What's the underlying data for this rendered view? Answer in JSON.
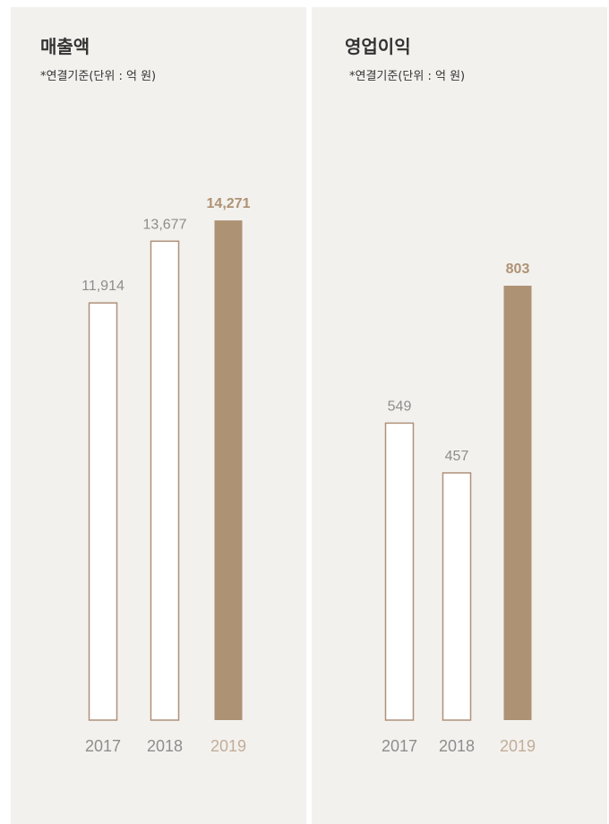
{
  "colors": {
    "panel_bg": "#f3f1ee",
    "accent": "#ae9274",
    "outline": "#b0917a",
    "muted_text": "#8d8d8d",
    "title_text": "#333333"
  },
  "chart_data": [
    {
      "type": "bar",
      "title": "매출액",
      "subtitle": "*연결기준(단위 : 억 원)",
      "categories": [
        "2017",
        "2018",
        "2019"
      ],
      "values": [
        11914,
        13677,
        14271
      ],
      "value_labels": [
        "11,914",
        "13,677",
        "14,271"
      ],
      "highlight_index": 2,
      "ylim": [
        0,
        16000
      ],
      "grid": false
    },
    {
      "type": "bar",
      "title": "영업이익",
      "subtitle": "*연결기준(단위 : 억 원)",
      "categories": [
        "2017",
        "2018",
        "2019"
      ],
      "values": [
        549,
        457,
        803
      ],
      "value_labels": [
        "549",
        "457",
        "803"
      ],
      "highlight_index": 2,
      "ylim": [
        0,
        1000
      ],
      "grid": false
    }
  ]
}
